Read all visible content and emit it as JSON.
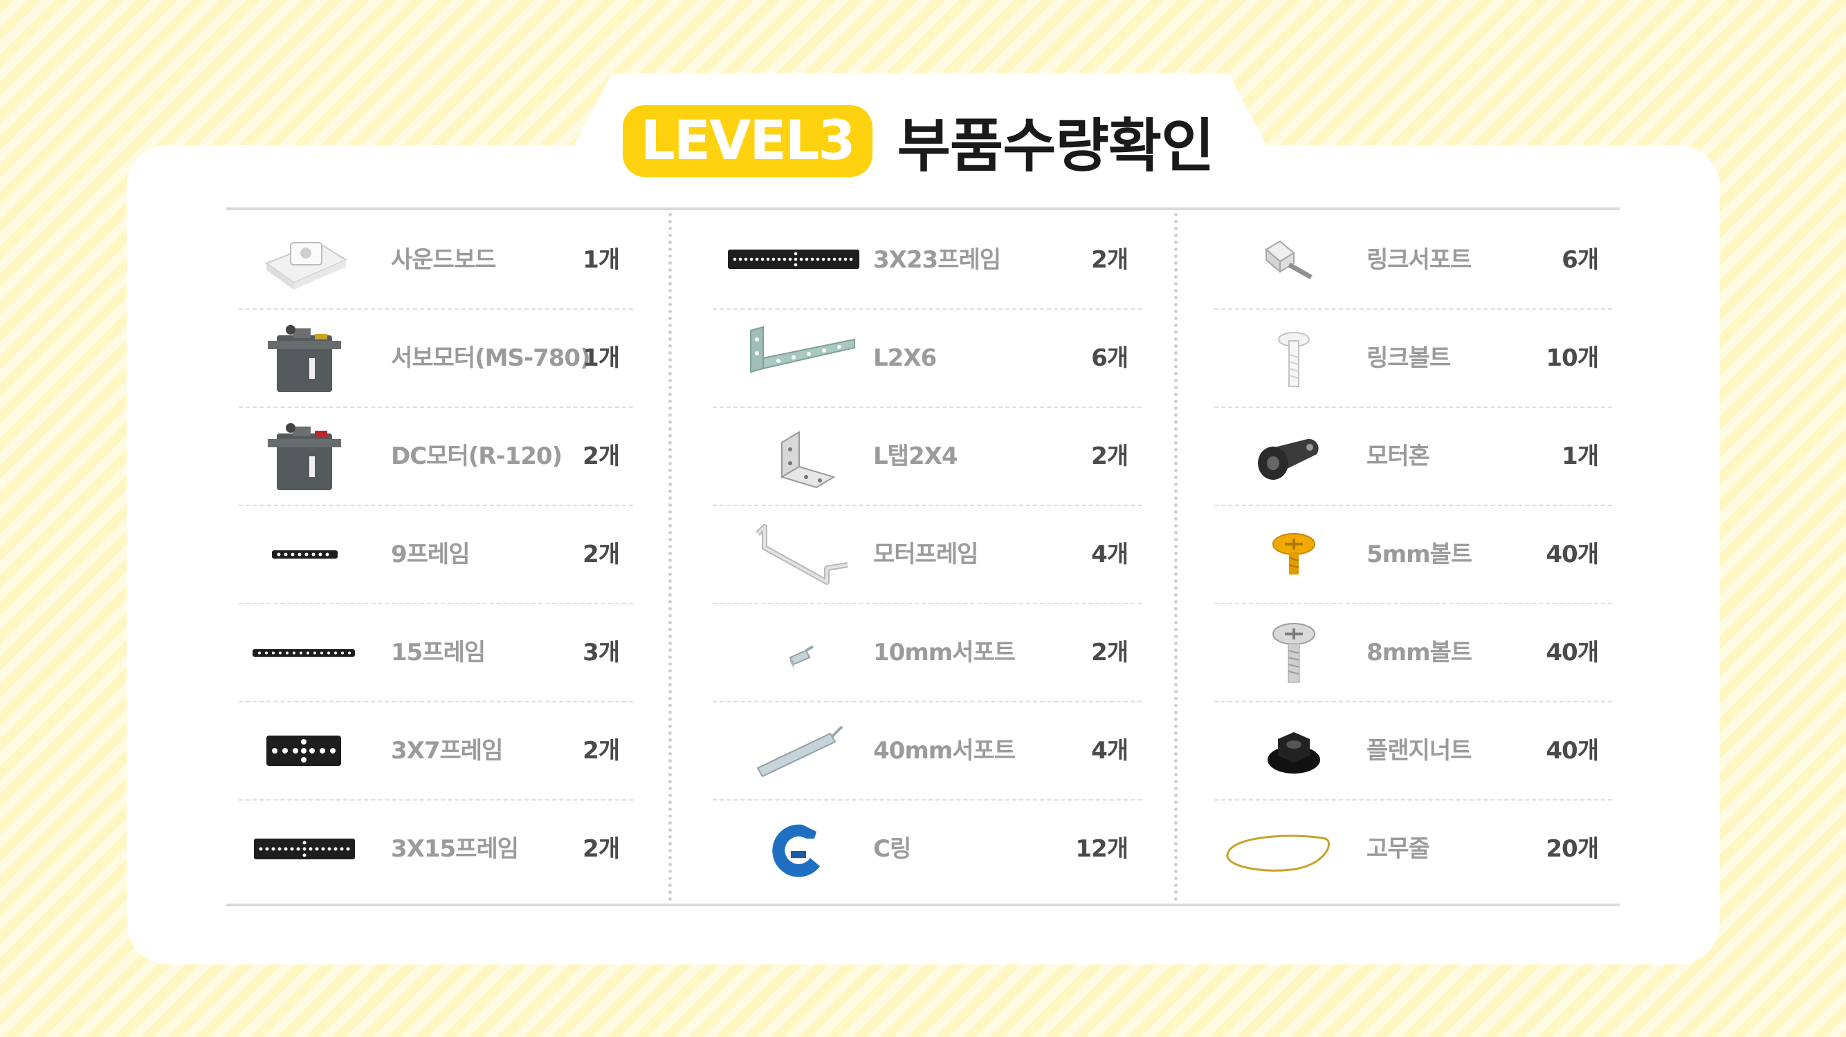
{
  "header": {
    "level_badge": "LEVEL3",
    "title": "부품수량확인"
  },
  "columns": [
    {
      "items": [
        {
          "name": "사운드보드",
          "qty": "1개",
          "icon": "sound-board-icon"
        },
        {
          "name": "서보모터(MS-780)",
          "qty": "1개",
          "icon": "servo-motor-icon"
        },
        {
          "name": "DC모터(R-120)",
          "qty": "2개",
          "icon": "dc-motor-icon"
        },
        {
          "name": "9프레임",
          "qty": "2개",
          "icon": "frame-9-icon"
        },
        {
          "name": "15프레임",
          "qty": "3개",
          "icon": "frame-15-icon"
        },
        {
          "name": "3X7프레임",
          "qty": "2개",
          "icon": "frame-3x7-icon"
        },
        {
          "name": "3X15프레임",
          "qty": "2개",
          "icon": "frame-3x15-icon"
        }
      ]
    },
    {
      "items": [
        {
          "name": "3X23프레임",
          "qty": "2개",
          "icon": "frame-3x23-icon"
        },
        {
          "name": "L2X6",
          "qty": "6개",
          "icon": "l-bracket-2x6-icon"
        },
        {
          "name": "L탭2X4",
          "qty": "2개",
          "icon": "l-tab-2x4-icon"
        },
        {
          "name": "모터프레임",
          "qty": "4개",
          "icon": "motor-frame-icon"
        },
        {
          "name": "10mm서포트",
          "qty": "2개",
          "icon": "support-10mm-icon"
        },
        {
          "name": "40mm서포트",
          "qty": "4개",
          "icon": "support-40mm-icon"
        },
        {
          "name": "C링",
          "qty": "12개",
          "icon": "c-ring-icon"
        }
      ]
    },
    {
      "items": [
        {
          "name": "링크서포트",
          "qty": "6개",
          "icon": "link-support-icon"
        },
        {
          "name": "링크볼트",
          "qty": "10개",
          "icon": "link-bolt-icon"
        },
        {
          "name": "모터혼",
          "qty": "1개",
          "icon": "motor-horn-icon"
        },
        {
          "name": "5mm볼트",
          "qty": "40개",
          "icon": "bolt-5mm-icon"
        },
        {
          "name": "8mm볼트",
          "qty": "40개",
          "icon": "bolt-8mm-icon"
        },
        {
          "name": "플랜지너트",
          "qty": "40개",
          "icon": "flange-nut-icon"
        },
        {
          "name": "고무줄",
          "qty": "20개",
          "icon": "rubber-band-icon"
        }
      ]
    }
  ],
  "colors": {
    "background": "#fff6c2",
    "badge": "#ffd20f",
    "title": "#1a1a1a",
    "item_name": "#9b9b9b",
    "quantity": "#4a4a4a"
  }
}
